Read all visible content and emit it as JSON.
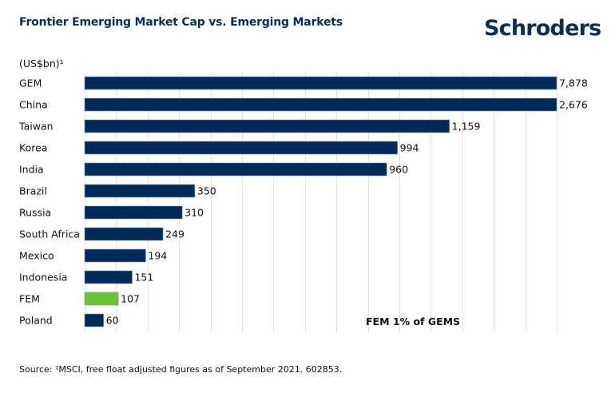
{
  "header": {
    "title": "Frontier Emerging Market Cap vs. Emerging Markets",
    "logo": "Schroders",
    "unit_label": "(US$bn)¹"
  },
  "footer": {
    "source": "Source: ¹MSCI, free float adjusted figures as of September 2021. 602853."
  },
  "colors": {
    "bar": "#022a5a",
    "highlight": "#66c431",
    "grid": "#e3e3e3",
    "title": "#0b2d5c"
  },
  "chart_data": {
    "type": "bar",
    "orientation": "horizontal",
    "title": "Frontier Emerging Market Cap vs. Emerging Markets",
    "xlabel": "",
    "ylabel": "(US$bn)¹",
    "categories": [
      "GEM",
      "China",
      "Taiwan",
      "Korea",
      "India",
      "Brazil",
      "Russia",
      "South Africa",
      "Mexico",
      "Indonesia",
      "FEM",
      "Poland"
    ],
    "values": [
      7878,
      2676,
      1159,
      994,
      960,
      350,
      310,
      249,
      194,
      151,
      107,
      60
    ],
    "value_labels": [
      "7,878",
      "2,676",
      "1,159",
      "994",
      "960",
      "350",
      "310",
      "249",
      "194",
      "151",
      "107",
      "60"
    ],
    "highlight_category": "FEM",
    "xlim": [
      0,
      1500
    ],
    "x_grid_step": 100,
    "clipped_at_axis_max": [
      "GEM",
      "China"
    ],
    "grid": true,
    "x_tick_labels_visible": false,
    "annotation": "FEM 1% of GEMS"
  }
}
